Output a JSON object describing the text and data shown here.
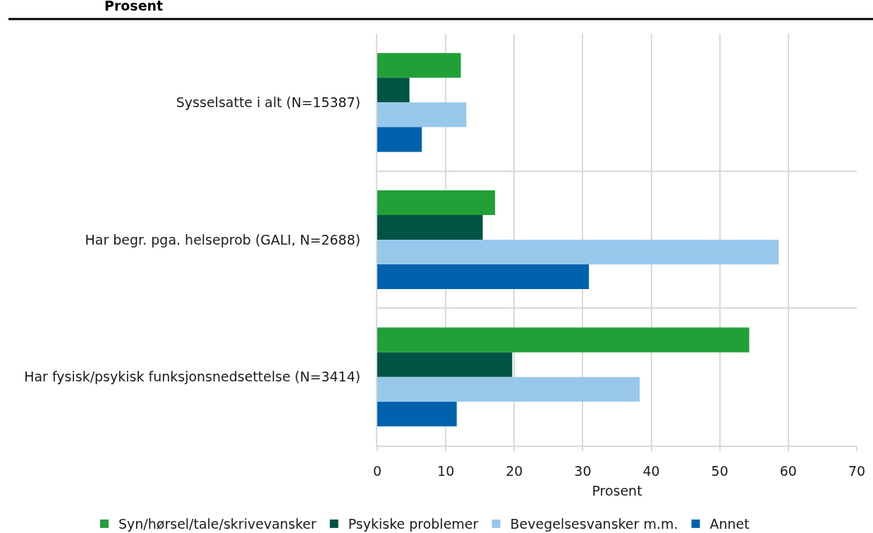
{
  "chart_data": {
    "type": "bar",
    "orientation": "horizontal",
    "title": "Prosent",
    "xlabel": "Prosent",
    "categories": [
      "Sysselsatte i alt (N=15387)",
      "Har begr. pga. helseprob (GALI, N=2688)",
      "Har fysisk/psykisk funksjonsnedsettelse (N=3414)"
    ],
    "series": [
      {
        "name": "Syn/hørsel/tale/skrivevansker",
        "color": "#21a038",
        "values": [
          12.2,
          17.2,
          54.3
        ]
      },
      {
        "name": "Psykiske problemer",
        "color": "#005444",
        "values": [
          4.7,
          15.4,
          19.7
        ]
      },
      {
        "name": "Bevegelsesvansker m.m.",
        "color": "#97c8ec",
        "values": [
          13.0,
          58.6,
          38.3
        ]
      },
      {
        "name": "Annet",
        "color": "#0062ad",
        "values": [
          6.5,
          30.9,
          11.6
        ]
      }
    ],
    "xlim": [
      0,
      70
    ],
    "xticks": [
      0,
      10,
      20,
      30,
      40,
      50,
      60,
      70
    ],
    "grid": true,
    "legend": "bottom"
  }
}
